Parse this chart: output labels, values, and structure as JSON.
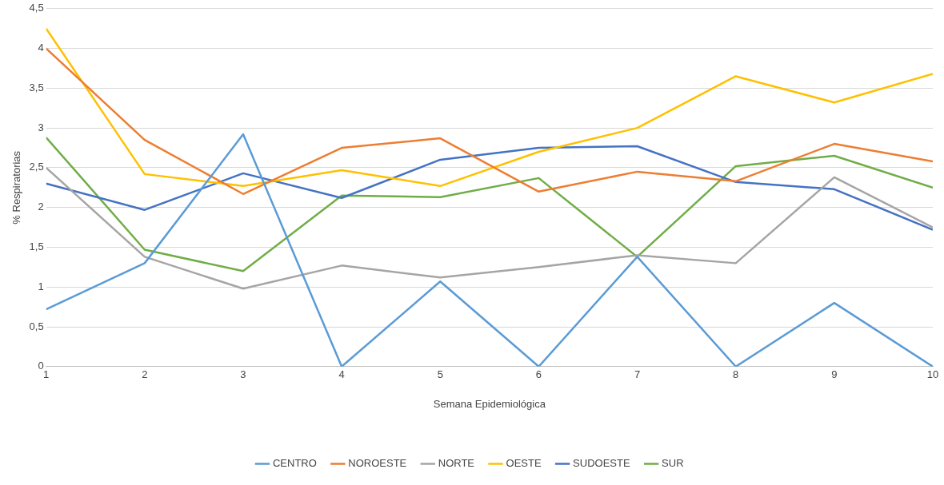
{
  "chart_data": {
    "type": "line",
    "xlabel": "Semana Epidemiológica",
    "ylabel": "% Respiratorias",
    "x": [
      1,
      2,
      3,
      4,
      5,
      6,
      7,
      8,
      9,
      10
    ],
    "series": [
      {
        "name": "CENTRO",
        "color": "#5b9bd5",
        "values": [
          0.72,
          1.3,
          2.92,
          0,
          1.07,
          0,
          1.38,
          0,
          0.8,
          0
        ]
      },
      {
        "name": "NOROESTE",
        "color": "#ed7d31",
        "values": [
          4.0,
          2.85,
          2.17,
          2.75,
          2.87,
          2.2,
          2.45,
          2.33,
          2.8,
          2.58
        ]
      },
      {
        "name": "NORTE",
        "color": "#a5a5a5",
        "values": [
          2.5,
          1.38,
          0.98,
          1.27,
          1.12,
          1.25,
          1.4,
          1.3,
          2.38,
          1.75
        ]
      },
      {
        "name": "OESTE",
        "color": "#ffc000",
        "values": [
          4.25,
          2.42,
          2.27,
          2.47,
          2.27,
          2.7,
          3.0,
          3.65,
          3.32,
          3.68
        ]
      },
      {
        "name": "SUDOESTE",
        "color": "#4472c4",
        "values": [
          2.3,
          1.97,
          2.43,
          2.12,
          2.6,
          2.75,
          2.77,
          2.32,
          2.23,
          1.72
        ]
      },
      {
        "name": "SUR",
        "color": "#70ad47",
        "values": [
          2.88,
          1.47,
          1.2,
          2.15,
          2.13,
          2.37,
          1.38,
          2.52,
          2.65,
          2.25
        ]
      }
    ],
    "xlim": [
      1,
      10
    ],
    "xticks": [
      1,
      2,
      3,
      4,
      5,
      6,
      7,
      8,
      9,
      10
    ],
    "ylim": [
      0,
      4.5
    ],
    "yticks": [
      0,
      {
        "value": 0.5,
        "label": "0,5"
      },
      1,
      {
        "value": 1.5,
        "label": "1,5"
      },
      2,
      {
        "value": 2.5,
        "label": "2,5"
      },
      3,
      {
        "value": 3.5,
        "label": "3,5"
      },
      4,
      {
        "value": 4.5,
        "label": "4,5"
      }
    ],
    "grid": "y",
    "legend": "bottom",
    "marker": "none",
    "line_style": "solid"
  }
}
